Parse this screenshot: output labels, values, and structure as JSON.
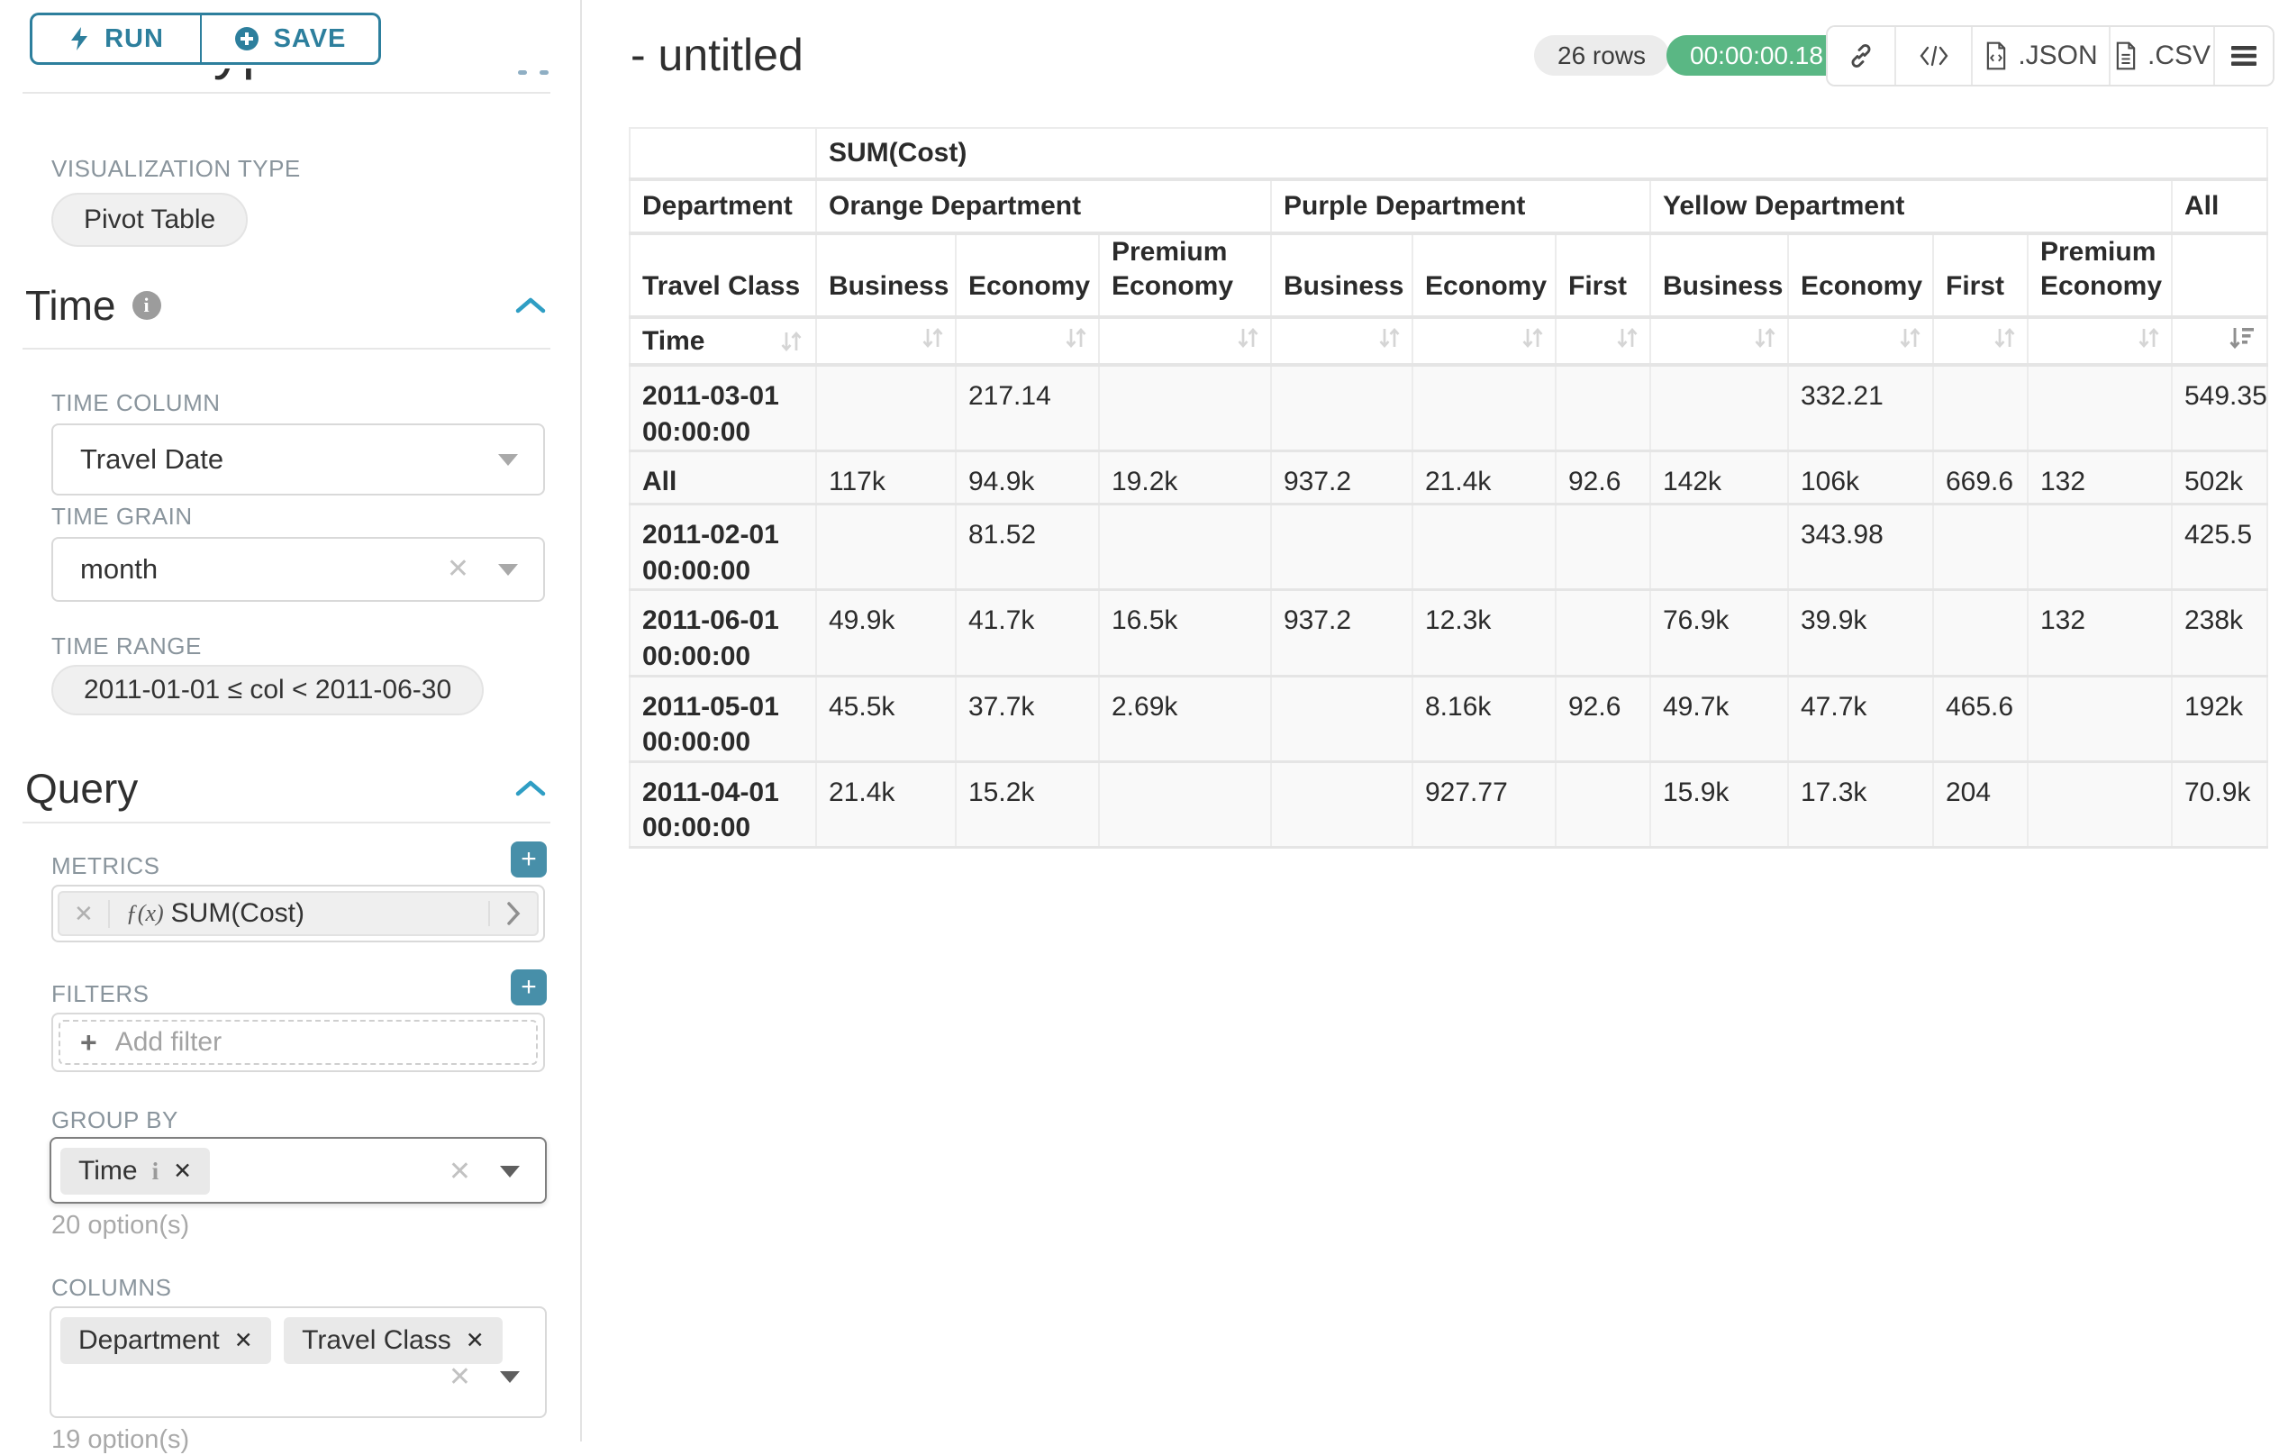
{
  "toolbar": {
    "run": "RUN",
    "save": "SAVE"
  },
  "sidebar": {
    "chart_type_heading": "Chart Type",
    "viz_type": {
      "label": "VISUALIZATION TYPE",
      "value": "Pivot Table"
    },
    "time": {
      "title": "Time",
      "time_column": {
        "label": "TIME COLUMN",
        "value": "Travel Date"
      },
      "time_grain": {
        "label": "TIME GRAIN",
        "value": "month"
      },
      "time_range": {
        "label": "TIME RANGE",
        "value": "2011-01-01 ≤ col < 2011-06-30"
      }
    },
    "query": {
      "title": "Query",
      "metrics": {
        "label": "METRICS",
        "fx": "ƒ(x)",
        "value": "SUM(Cost)"
      },
      "filters": {
        "label": "FILTERS",
        "placeholder": "Add filter"
      },
      "group_by": {
        "label": "GROUP BY",
        "tag": "Time",
        "hint": "20 option(s)"
      },
      "columns": {
        "label": "COLUMNS",
        "tags": [
          "Department",
          "Travel Class"
        ],
        "hint": "19 option(s)"
      }
    }
  },
  "header": {
    "title": "- untitled",
    "rows_badge": "26 rows",
    "timer_badge": "00:00:00.18",
    "export_json": ".JSON",
    "export_csv": ".CSV"
  },
  "colors": {
    "teal": "#2d7f9d",
    "green": "#5ab784",
    "accent_caret": "#2f9ec4"
  },
  "chart_data": {
    "type": "table",
    "title": "SUM(Cost)",
    "row_header": "Time",
    "corner_headers": [
      "Department",
      "Travel Class"
    ],
    "column_groups": [
      {
        "label": "Orange Department",
        "classes": [
          "Business",
          "Economy",
          "Premium Economy"
        ]
      },
      {
        "label": "Purple Department",
        "classes": [
          "Business",
          "Economy",
          "First"
        ]
      },
      {
        "label": "Yellow Department",
        "classes": [
          "Business",
          "Economy",
          "First",
          "Premium Economy"
        ]
      },
      {
        "label": "All",
        "classes": [
          ""
        ]
      }
    ],
    "rows": [
      {
        "label": "2011-03-01 00:00:00",
        "values": [
          "",
          "217.14",
          "",
          "",
          "",
          "",
          "",
          "332.21",
          "",
          "",
          "549.35"
        ]
      },
      {
        "label": "All",
        "values": [
          "117k",
          "94.9k",
          "19.2k",
          "937.2",
          "21.4k",
          "92.6",
          "142k",
          "106k",
          "669.6",
          "132",
          "502k"
        ]
      },
      {
        "label": "2011-02-01 00:00:00",
        "values": [
          "",
          "81.52",
          "",
          "",
          "",
          "",
          "",
          "343.98",
          "",
          "",
          "425.5"
        ]
      },
      {
        "label": "2011-06-01 00:00:00",
        "values": [
          "49.9k",
          "41.7k",
          "16.5k",
          "937.2",
          "12.3k",
          "",
          "76.9k",
          "39.9k",
          "",
          "132",
          "238k"
        ]
      },
      {
        "label": "2011-05-01 00:00:00",
        "values": [
          "45.5k",
          "37.7k",
          "2.69k",
          "",
          "8.16k",
          "92.6",
          "49.7k",
          "47.7k",
          "465.6",
          "",
          "192k"
        ]
      },
      {
        "label": "2011-04-01 00:00:00",
        "values": [
          "21.4k",
          "15.2k",
          "",
          "",
          "927.77",
          "",
          "15.9k",
          "17.3k",
          "204",
          "",
          "70.9k"
        ]
      }
    ]
  }
}
